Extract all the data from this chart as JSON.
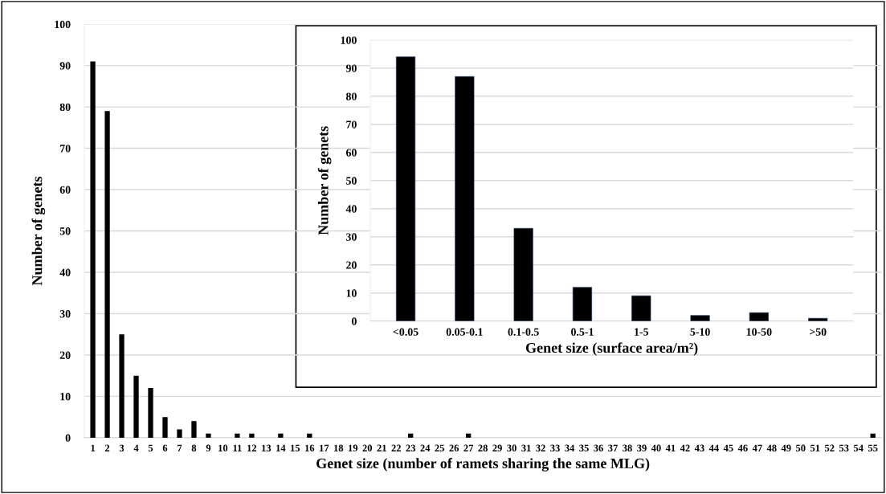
{
  "chart_data": [
    {
      "type": "bar",
      "xlabel": "Genet size (number of ramets sharing the same MLG)",
      "ylabel": "Number of genets",
      "categories": [
        "1",
        "2",
        "3",
        "4",
        "5",
        "6",
        "7",
        "8",
        "9",
        "10",
        "11",
        "12",
        "13",
        "14",
        "15",
        "16",
        "17",
        "18",
        "19",
        "20",
        "21",
        "22",
        "23",
        "24",
        "25",
        "26",
        "27",
        "28",
        "29",
        "30",
        "31",
        "32",
        "33",
        "34",
        "35",
        "36",
        "37",
        "38",
        "39",
        "40",
        "41",
        "42",
        "43",
        "44",
        "45",
        "46",
        "47",
        "48",
        "49",
        "50",
        "51",
        "52",
        "53",
        "54",
        "55"
      ],
      "values": [
        91,
        79,
        25,
        15,
        12,
        5,
        2,
        4,
        1,
        0,
        1,
        1,
        0,
        1,
        0,
        1,
        0,
        0,
        0,
        0,
        0,
        0,
        1,
        0,
        0,
        0,
        1,
        0,
        0,
        0,
        0,
        0,
        0,
        0,
        0,
        0,
        0,
        0,
        0,
        0,
        0,
        0,
        0,
        0,
        0,
        0,
        0,
        0,
        0,
        0,
        0,
        0,
        0,
        0,
        1
      ],
      "color": "#000000",
      "ylim": [
        0,
        100
      ],
      "yticks": [
        0,
        10,
        20,
        30,
        40,
        50,
        60,
        70,
        80,
        90,
        100
      ],
      "grid": "y"
    },
    {
      "type": "bar",
      "xlabel": "Genet size (surface area/m²)",
      "ylabel": "Number of genets",
      "categories": [
        "<0.05",
        "0.05-0.1",
        "0.1-0.5",
        "0.5-1",
        "1-5",
        "5-10",
        "10-50",
        ">50"
      ],
      "values": [
        94,
        87,
        33,
        12,
        9,
        2,
        3,
        1
      ],
      "color": "#000000",
      "ylim": [
        0,
        100
      ],
      "yticks": [
        0,
        10,
        20,
        30,
        40,
        50,
        60,
        70,
        80,
        90,
        100
      ],
      "grid": "y"
    }
  ]
}
